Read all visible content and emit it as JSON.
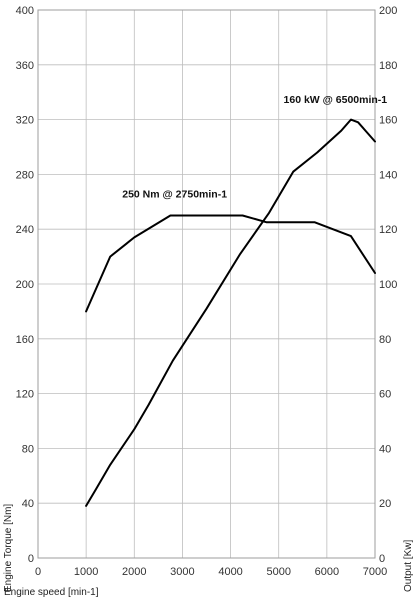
{
  "chart_data": {
    "type": "line",
    "title": "",
    "xlabel": "Engine speed [min-1]",
    "ylabel_left": "Engine Torque [Nm]",
    "ylabel_right": "Output [Kw]",
    "xlim": [
      0,
      7000
    ],
    "ylim_left": [
      0,
      400
    ],
    "ylim_right": [
      0,
      200
    ],
    "x_ticks": [
      0,
      1000,
      2000,
      3000,
      4000,
      5000,
      6000,
      7000
    ],
    "y_left_ticks": [
      0,
      40,
      80,
      120,
      160,
      200,
      240,
      280,
      320,
      360,
      400
    ],
    "y_right_ticks": [
      0,
      20,
      40,
      60,
      80,
      100,
      120,
      140,
      160,
      180,
      200
    ],
    "grid": true,
    "series": [
      {
        "axis": "left",
        "x": [
          1000,
          1500,
          2000,
          2750,
          3500,
          4250,
          4750,
          5750,
          6500,
          7000
        ],
        "y": [
          180,
          220,
          234,
          250,
          250,
          250,
          245,
          245,
          235,
          208
        ]
      },
      {
        "axis": "right",
        "x": [
          1000,
          1200,
          1500,
          2000,
          2300,
          2800,
          3500,
          4200,
          4800,
          5300,
          5800,
          6300,
          6500,
          6650,
          6800,
          7000
        ],
        "y": [
          19,
          25,
          34,
          47,
          56,
          72,
          91,
          111,
          126,
          141,
          148,
          156,
          160,
          159,
          156,
          152
        ]
      }
    ],
    "annotations": [
      {
        "text": "250 Nm @ 2750min-1",
        "x": 1750,
        "y": 263,
        "axis": "left"
      },
      {
        "text": "160 kW @ 6500min-1",
        "x": 5100,
        "y": 166,
        "axis": "right"
      }
    ]
  }
}
